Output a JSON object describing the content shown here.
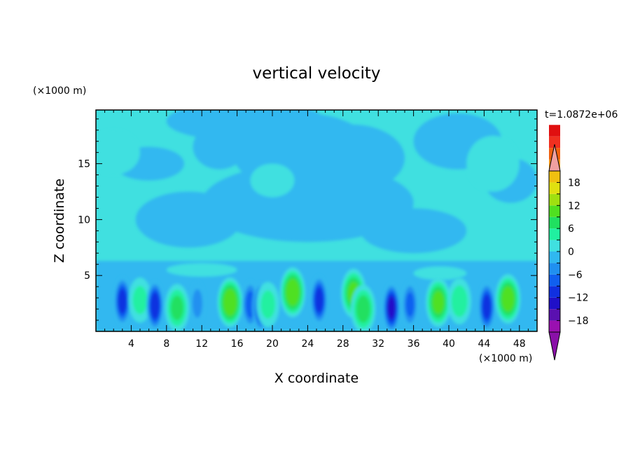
{
  "chart_data": {
    "type": "heatmap",
    "title": "vertical velocity",
    "xlabel": "X coordinate",
    "ylabel": "Z coordinate",
    "x_unit": "(×1000 m)",
    "y_unit": "(×1000 m)",
    "time_label": "t=1.0872e+06",
    "xlim": [
      0,
      50
    ],
    "ylim": [
      0,
      19.8
    ],
    "x_ticks": [
      4,
      8,
      12,
      16,
      20,
      24,
      28,
      32,
      36,
      40,
      44,
      48
    ],
    "y_ticks": [
      5,
      10,
      15
    ],
    "colorbar": {
      "min": -21,
      "max": 21,
      "step": 3,
      "tick_values": [
        -18,
        -12,
        -6,
        0,
        6,
        12,
        18
      ],
      "tick_labels": [
        "−18",
        "−12",
        "−6",
        "0",
        "6",
        "12",
        "18"
      ],
      "extend": "both",
      "colors": [
        "#9a10b0",
        "#5a10b0",
        "#2010c8",
        "#1030e0",
        "#1060f0",
        "#2090f0",
        "#30b8f0",
        "#40e0e0",
        "#20f0a0",
        "#20e060",
        "#50e020",
        "#a0e010",
        "#e0e010",
        "#f0c010",
        "#f09010",
        "#f06010",
        "#f03020",
        "#e01010"
      ],
      "extend_low_color": "#8a10a8",
      "extend_high_color": "#f0a0a0"
    },
    "cells": [
      {
        "x": 3.0,
        "z": 2.7,
        "w": -12
      },
      {
        "x": 5.0,
        "z": 2.8,
        "w": 5
      },
      {
        "x": 6.7,
        "z": 2.3,
        "w": -13
      },
      {
        "x": 9.2,
        "z": 2.1,
        "w": 8
      },
      {
        "x": 11.5,
        "z": 2.5,
        "w": -5
      },
      {
        "x": 15.2,
        "z": 2.6,
        "w": 13
      },
      {
        "x": 17.5,
        "z": 2.4,
        "w": -9
      },
      {
        "x": 18.7,
        "z": 2.2,
        "w": -12
      },
      {
        "x": 19.5,
        "z": 2.4,
        "w": 5
      },
      {
        "x": 22.3,
        "z": 3.5,
        "w": 13
      },
      {
        "x": 25.3,
        "z": 2.8,
        "w": -12
      },
      {
        "x": 29.2,
        "z": 3.4,
        "w": 11
      },
      {
        "x": 30.3,
        "z": 2.0,
        "w": 9
      },
      {
        "x": 33.5,
        "z": 2.1,
        "w": -14
      },
      {
        "x": 35.6,
        "z": 2.4,
        "w": -8
      },
      {
        "x": 38.8,
        "z": 2.6,
        "w": 11
      },
      {
        "x": 41.2,
        "z": 2.7,
        "w": 6
      },
      {
        "x": 44.3,
        "z": 2.2,
        "w": -12
      },
      {
        "x": 46.7,
        "z": 2.9,
        "w": 12
      }
    ]
  }
}
